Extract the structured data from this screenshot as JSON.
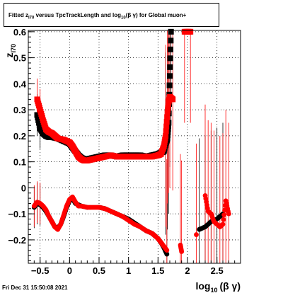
{
  "title": {
    "prefix": "Fitted  z",
    "sub1": "I70",
    "mid": "  versus TpcTrackLength and log",
    "sub2": "10",
    "suffix": "(β  γ) for Global muon+"
  },
  "datestamp": "Fri Dec 31 15:50:08 2021",
  "colors": {
    "black_series": "#000000",
    "red_series": "#ff0000",
    "grid": "#000000",
    "background": "#ffffff"
  },
  "chart_data": {
    "type": "scatter",
    "xlabel": {
      "main": "log",
      "sub": "10",
      "rest": "(β γ)"
    },
    "ylabel": {
      "main": "z",
      "sub": "I70"
    },
    "xlim": [
      -0.7,
      2.9
    ],
    "ylim": [
      -0.29,
      0.605
    ],
    "x_ticks": [
      -0.5,
      0,
      0.5,
      1,
      1.5,
      2,
      2.5
    ],
    "x_tick_labels": [
      "−0.5",
      "0",
      "0.5",
      "1",
      "1.5",
      "2",
      "2.5"
    ],
    "y_ticks": [
      -0.2,
      -0.1,
      0,
      0.1,
      0.2,
      0.3,
      0.4,
      0.5,
      0.6
    ],
    "y_tick_labels": [
      "−0.2",
      "−0.1",
      "0",
      "0.1",
      "0.2",
      "0.3",
      "0.4",
      "0.5",
      "0.6"
    ],
    "grid": true,
    "series": [
      {
        "color": "#000000",
        "upper": {
          "x": [
            -0.55,
            -0.5,
            -0.45,
            -0.4,
            -0.35,
            -0.3,
            -0.2,
            -0.1,
            0.0,
            0.05,
            0.1,
            0.15,
            0.2,
            0.25,
            0.3,
            0.4,
            0.5,
            0.6,
            0.7,
            0.8,
            0.9,
            1.0,
            1.1,
            1.2,
            1.3,
            1.4,
            1.5,
            1.55,
            1.6,
            1.63,
            1.66,
            1.68,
            1.7,
            1.72
          ],
          "y": [
            0.28,
            0.23,
            0.21,
            0.2,
            0.195,
            0.195,
            0.19,
            0.18,
            0.17,
            0.155,
            0.14,
            0.125,
            0.115,
            0.11,
            0.11,
            0.115,
            0.12,
            0.125,
            0.125,
            0.12,
            0.125,
            0.125,
            0.125,
            0.125,
            0.12,
            0.125,
            0.13,
            0.135,
            0.14,
            0.17,
            0.19,
            0.25,
            0.43,
            0.6
          ]
        },
        "lower": {
          "x": [
            -0.6,
            -0.55,
            -0.5,
            -0.45,
            -0.4,
            -0.35,
            -0.3,
            -0.25,
            -0.2,
            -0.15,
            -0.1,
            -0.05,
            0.0,
            0.05,
            0.1,
            0.2,
            0.3,
            0.5,
            0.6,
            0.7,
            0.8,
            0.9,
            1.0,
            1.1,
            1.2,
            1.3,
            1.4,
            1.45,
            1.5,
            1.55,
            1.6,
            1.65,
            2.2,
            2.3,
            2.4,
            2.5,
            2.6
          ],
          "y": [
            -0.075,
            -0.06,
            -0.065,
            -0.075,
            -0.09,
            -0.11,
            -0.13,
            -0.15,
            -0.155,
            -0.14,
            -0.11,
            -0.075,
            -0.05,
            -0.04,
            -0.06,
            -0.07,
            -0.075,
            -0.075,
            -0.08,
            -0.09,
            -0.1,
            -0.11,
            -0.12,
            -0.135,
            -0.15,
            -0.165,
            -0.175,
            -0.185,
            -0.195,
            -0.21,
            -0.23,
            -0.255,
            -0.16,
            -0.15,
            -0.13,
            -0.12,
            -0.1
          ]
        }
      },
      {
        "color": "#ff0000",
        "upper": {
          "x": [
            -0.55,
            -0.5,
            -0.45,
            -0.4,
            -0.35,
            -0.3,
            -0.25,
            -0.2,
            -0.1,
            0.0,
            0.05,
            0.1,
            0.15,
            0.2,
            0.25,
            0.3,
            0.4,
            0.5,
            0.6,
            0.7,
            0.8,
            0.9,
            1.0,
            1.1,
            1.2,
            1.3,
            1.4,
            1.5,
            1.55,
            1.6,
            1.63,
            1.66,
            1.68,
            1.7,
            1.75,
            1.95,
            2.05
          ],
          "y": [
            0.34,
            0.3,
            0.26,
            0.225,
            0.215,
            0.21,
            0.2,
            0.19,
            0.185,
            0.175,
            0.16,
            0.14,
            0.12,
            0.11,
            0.105,
            0.105,
            0.11,
            0.115,
            0.12,
            0.125,
            0.12,
            0.12,
            0.12,
            0.12,
            0.12,
            0.12,
            0.12,
            0.125,
            0.13,
            0.16,
            0.2,
            0.29,
            0.33,
            0.35,
            0.34,
            0.6,
            0.6
          ]
        },
        "lower": {
          "x": [
            -0.6,
            -0.55,
            -0.5,
            -0.45,
            -0.4,
            -0.35,
            -0.3,
            -0.25,
            -0.2,
            -0.15,
            -0.1,
            -0.05,
            0.0,
            0.05,
            0.1,
            0.15,
            0.2,
            0.3,
            0.4,
            0.5,
            0.6,
            0.7,
            0.8,
            0.9,
            1.0,
            1.1,
            1.2,
            1.3,
            1.4,
            1.45,
            1.5,
            1.55,
            1.6,
            1.65,
            1.88,
            1.9,
            2.15,
            2.3,
            2.35,
            2.4,
            2.45,
            2.55,
            2.6,
            2.65,
            2.7
          ],
          "y": [
            -0.07,
            -0.055,
            -0.06,
            -0.07,
            -0.085,
            -0.11,
            -0.13,
            -0.15,
            -0.16,
            -0.14,
            -0.105,
            -0.07,
            -0.045,
            -0.035,
            -0.055,
            -0.07,
            -0.07,
            -0.075,
            -0.075,
            -0.075,
            -0.08,
            -0.09,
            -0.1,
            -0.11,
            -0.125,
            -0.14,
            -0.15,
            -0.165,
            -0.175,
            -0.185,
            -0.195,
            -0.21,
            -0.225,
            -0.24,
            -0.22,
            -0.245,
            -0.18,
            -0.03,
            -0.09,
            -0.1,
            -0.13,
            -0.15,
            -0.14,
            -0.05,
            -0.1
          ]
        }
      }
    ]
  }
}
